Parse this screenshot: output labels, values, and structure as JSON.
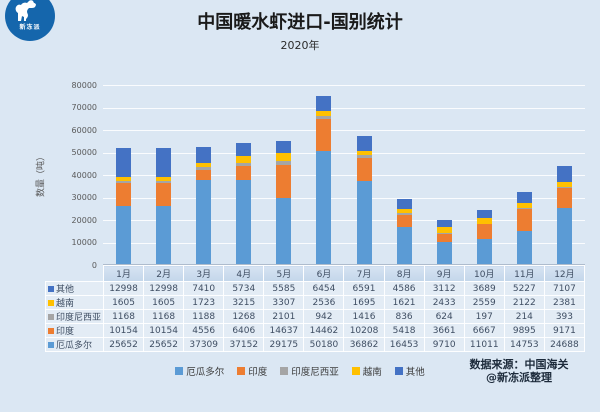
{
  "brand": {
    "logo_text": "新冻派"
  },
  "header": {
    "title": "中国暖水虾进口-国别统计",
    "subtitle": "2020年"
  },
  "chart_data": {
    "type": "bar",
    "stacked": true,
    "title": "中国暖水虾进口-国别统计",
    "subtitle": "2020年",
    "ylabel": "数量（吨）",
    "ylim": [
      0,
      80000
    ],
    "ytick_interval": 10000,
    "yticks": [
      0,
      10000,
      20000,
      30000,
      40000,
      50000,
      60000,
      70000,
      80000
    ],
    "grid": true,
    "legend_position": "bottom",
    "categories": [
      "1月",
      "2月",
      "3月",
      "4月",
      "5月",
      "6月",
      "7月",
      "8月",
      "9月",
      "10月",
      "11月",
      "12月"
    ],
    "series": [
      {
        "name": "厄瓜多尔",
        "color": "#5B9BD5",
        "values": [
          25652,
          25652,
          37309,
          37152,
          29175,
          50180,
          36862,
          16453,
          9710,
          11011,
          14753,
          24688
        ]
      },
      {
        "name": "印度",
        "color": "#ED7D31",
        "values": [
          10154,
          10154,
          4556,
          6406,
          14637,
          14462,
          10208,
          5418,
          3661,
          6667,
          9895,
          9171
        ]
      },
      {
        "name": "印度尼西亚",
        "color": "#A5A5A5",
        "values": [
          1168,
          1168,
          1188,
          1268,
          2101,
          942,
          1416,
          836,
          624,
          197,
          214,
          393
        ]
      },
      {
        "name": "越南",
        "color": "#FFC000",
        "values": [
          1605,
          1605,
          1723,
          3215,
          3307,
          2536,
          1695,
          1621,
          2433,
          2559,
          2122,
          2381
        ]
      },
      {
        "name": "其他",
        "color": "#4472C4",
        "values": [
          12998,
          12998,
          7410,
          5734,
          5585,
          6454,
          6591,
          4586,
          3112,
          3689,
          5227,
          7107
        ]
      }
    ],
    "legend_order": [
      "厄瓜多尔",
      "印度",
      "印度尼西亚",
      "越南",
      "其他"
    ],
    "table_row_order": [
      "其他",
      "越南",
      "印度尼西亚",
      "印度",
      "厄瓜多尔"
    ]
  },
  "footer": {
    "source_line1": "数据来源：中国海关",
    "source_line2": "@新冻派整理"
  }
}
